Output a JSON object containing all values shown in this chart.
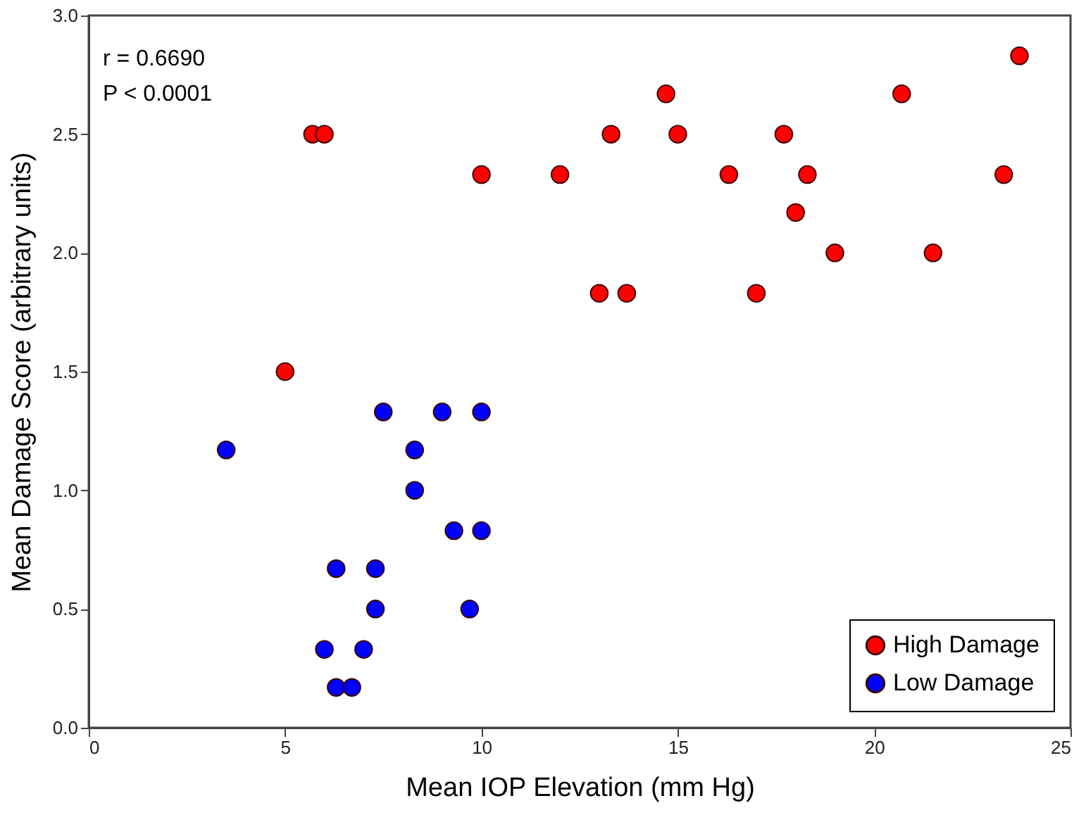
{
  "chart_data": {
    "type": "scatter",
    "xlabel": "Mean IOP Elevation (mm Hg)",
    "ylabel": "Mean Damage Score (arbitrary units)",
    "annotations": [
      "r = 0.6690",
      "P < 0.0001"
    ],
    "xlim": [
      0,
      25
    ],
    "xticks": [
      0,
      5,
      10,
      15,
      20,
      25
    ],
    "ylim": [
      0,
      3
    ],
    "yticks": [
      {
        "value": 0,
        "label": "0.0"
      },
      {
        "value": 0.5,
        "label": "0.5"
      },
      {
        "value": 1,
        "label": "1.0"
      },
      {
        "value": 1.5,
        "label": "1.5"
      },
      {
        "value": 2,
        "label": "2.0"
      },
      {
        "value": 2.5,
        "label": "2.5"
      },
      {
        "value": 3,
        "label": "3.0"
      }
    ],
    "grid": false,
    "legend": "bottom right",
    "marker": "circle",
    "series": [
      {
        "name": "High Damage",
        "color": "#ff0000",
        "x": [
          5.0,
          5.7,
          6.0,
          10.0,
          12.0,
          13.0,
          13.7,
          13.3,
          14.7,
          15.0,
          16.3,
          17.0,
          17.7,
          18.0,
          18.3,
          19.0,
          20.7,
          21.5,
          23.3,
          23.7
        ],
        "values": [
          1.5,
          2.5,
          2.5,
          2.33,
          2.33,
          1.83,
          1.83,
          2.5,
          2.67,
          2.5,
          2.33,
          1.83,
          2.5,
          2.17,
          2.33,
          2.0,
          2.67,
          2.0,
          2.33,
          2.83
        ]
      },
      {
        "name": "Low Damage",
        "color": "#0000ff",
        "x": [
          3.5,
          6.3,
          6.0,
          6.3,
          6.7,
          7.0,
          7.3,
          7.3,
          7.5,
          8.3,
          8.3,
          9.0,
          9.3,
          9.7,
          10.0,
          10.0
        ],
        "values": [
          1.17,
          0.67,
          0.33,
          0.17,
          0.17,
          0.33,
          0.67,
          0.5,
          1.33,
          1.17,
          1.0,
          1.33,
          0.83,
          0.5,
          1.33,
          0.83
        ]
      }
    ]
  }
}
